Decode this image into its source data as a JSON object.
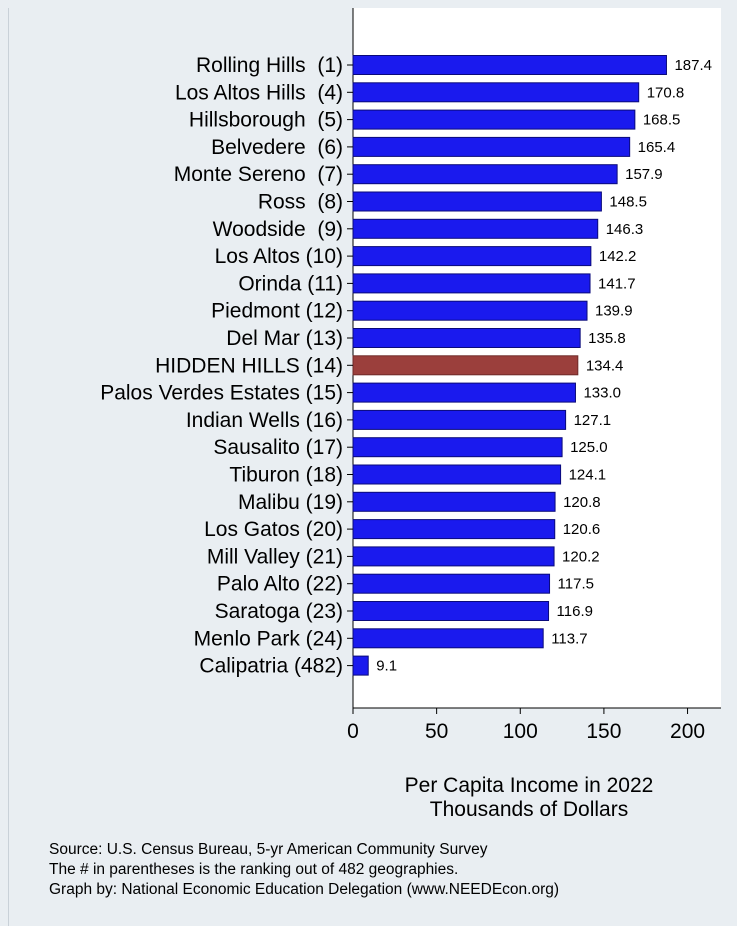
{
  "chart_data": {
    "type": "bar",
    "orientation": "horizontal",
    "categories": [
      "Rolling Hills  (1)",
      "Los Altos Hills  (4)",
      "Hillsborough  (5)",
      "Belvedere  (6)",
      "Monte Sereno  (7)",
      "Ross  (8)",
      "Woodside  (9)",
      "Los Altos (10)",
      "Orinda (11)",
      "Piedmont (12)",
      "Del Mar (13)",
      "HIDDEN HILLS (14)",
      "Palos Verdes Estates (15)",
      "Indian Wells (16)",
      "Sausalito (17)",
      "Tiburon (18)",
      "Malibu (19)",
      "Los Gatos (20)",
      "Mill Valley (21)",
      "Palo Alto (22)",
      "Saratoga (23)",
      "Menlo Park (24)",
      "Calipatria (482)"
    ],
    "values": [
      187.4,
      170.8,
      168.5,
      165.4,
      157.9,
      148.5,
      146.3,
      142.2,
      141.7,
      139.9,
      135.8,
      134.4,
      133.0,
      127.1,
      125.0,
      124.1,
      120.8,
      120.6,
      120.2,
      117.5,
      116.9,
      113.7,
      9.1
    ],
    "value_labels": [
      "187.4",
      "170.8",
      "168.5",
      "165.4",
      "157.9",
      "148.5",
      "146.3",
      "142.2",
      "141.7",
      "139.9",
      "135.8",
      "134.4",
      "133.0",
      "127.1",
      "125.0",
      "124.1",
      "120.8",
      "120.6",
      "120.2",
      "117.5",
      "116.9",
      "113.7",
      "9.1"
    ],
    "highlight_index": 11,
    "xticks": [
      "0",
      "50",
      "100",
      "150",
      "200"
    ],
    "xtick_values": [
      0,
      50,
      100,
      150,
      200
    ],
    "xlim": [
      0,
      220
    ],
    "xlabel": [
      "Per Capita Income in 2022",
      "Thousands of Dollars"
    ],
    "grid": false,
    "colors": {
      "bar": "#1a1aee",
      "bar_stroke": "#0a0a7a",
      "highlight": "#9b3f3c",
      "highlight_stroke": "#6e2a28",
      "plot_bg": "#ffffff",
      "page_bg": "#e9eef2"
    }
  },
  "source": {
    "line1": "Source: U.S. Census Bureau, 5-yr American Community Survey",
    "line2": "The # in parentheses is the ranking out of 482 geographies.",
    "line3": "Graph by: National Economic Education Delegation (www.NEEDEcon.org)"
  }
}
